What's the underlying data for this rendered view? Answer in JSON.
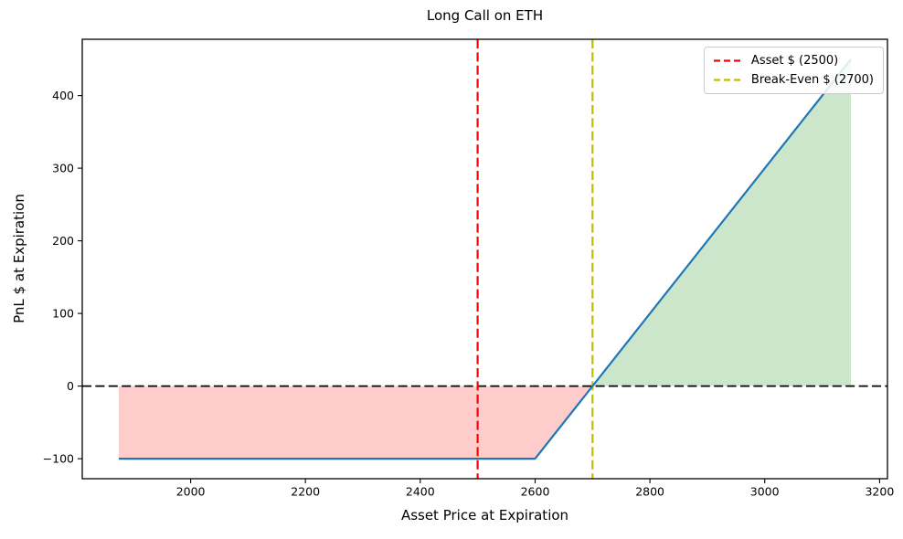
{
  "chart_data": {
    "type": "line",
    "title": "Long Call on ETH",
    "xlabel": "Asset Price at Expiration",
    "ylabel": "PnL $ at Expiration",
    "xlim": [
      1811.25,
      3213.75
    ],
    "ylim": [
      -127.5,
      477.5
    ],
    "xticks": [
      2000,
      2200,
      2400,
      2600,
      2800,
      3000,
      3200
    ],
    "yticks": [
      -100,
      0,
      100,
      200,
      300,
      400
    ],
    "grid": false,
    "series": [
      {
        "name": "long-call-pnl",
        "color": "#1f77b4",
        "linestyle": "solid",
        "points": [
          [
            1875,
            -100
          ],
          [
            2600,
            -100
          ],
          [
            3150,
            450
          ]
        ]
      }
    ],
    "fills": [
      {
        "name": "loss-region",
        "color": "#ff0000",
        "opacity": 0.2,
        "points": [
          [
            1875,
            0
          ],
          [
            2700,
            0
          ],
          [
            2600,
            -100
          ],
          [
            1875,
            -100
          ]
        ]
      },
      {
        "name": "profit-region",
        "color": "#008000",
        "opacity": 0.2,
        "points": [
          [
            2700,
            0
          ],
          [
            3150,
            450
          ],
          [
            3150,
            0
          ]
        ]
      }
    ],
    "hlines": [
      {
        "name": "zero-line",
        "y": 0,
        "color": "#000000",
        "linestyle": "dashed"
      }
    ],
    "vlines": [
      {
        "name": "asset-price-line",
        "x": 2500,
        "color": "#ff0000",
        "linestyle": "dashed",
        "label": "Asset $ (2500)"
      },
      {
        "name": "break-even-line",
        "x": 2700,
        "color": "#bfbf00",
        "linestyle": "dashed",
        "label": "Break-Even $ (2700)"
      }
    ],
    "legend": {
      "position": "upper right",
      "entries": [
        {
          "label": "Asset $ (2500)",
          "color": "#ff0000",
          "linestyle": "dashed"
        },
        {
          "label": "Break-Even $ (2700)",
          "color": "#bfbf00",
          "linestyle": "dashed"
        }
      ]
    }
  }
}
